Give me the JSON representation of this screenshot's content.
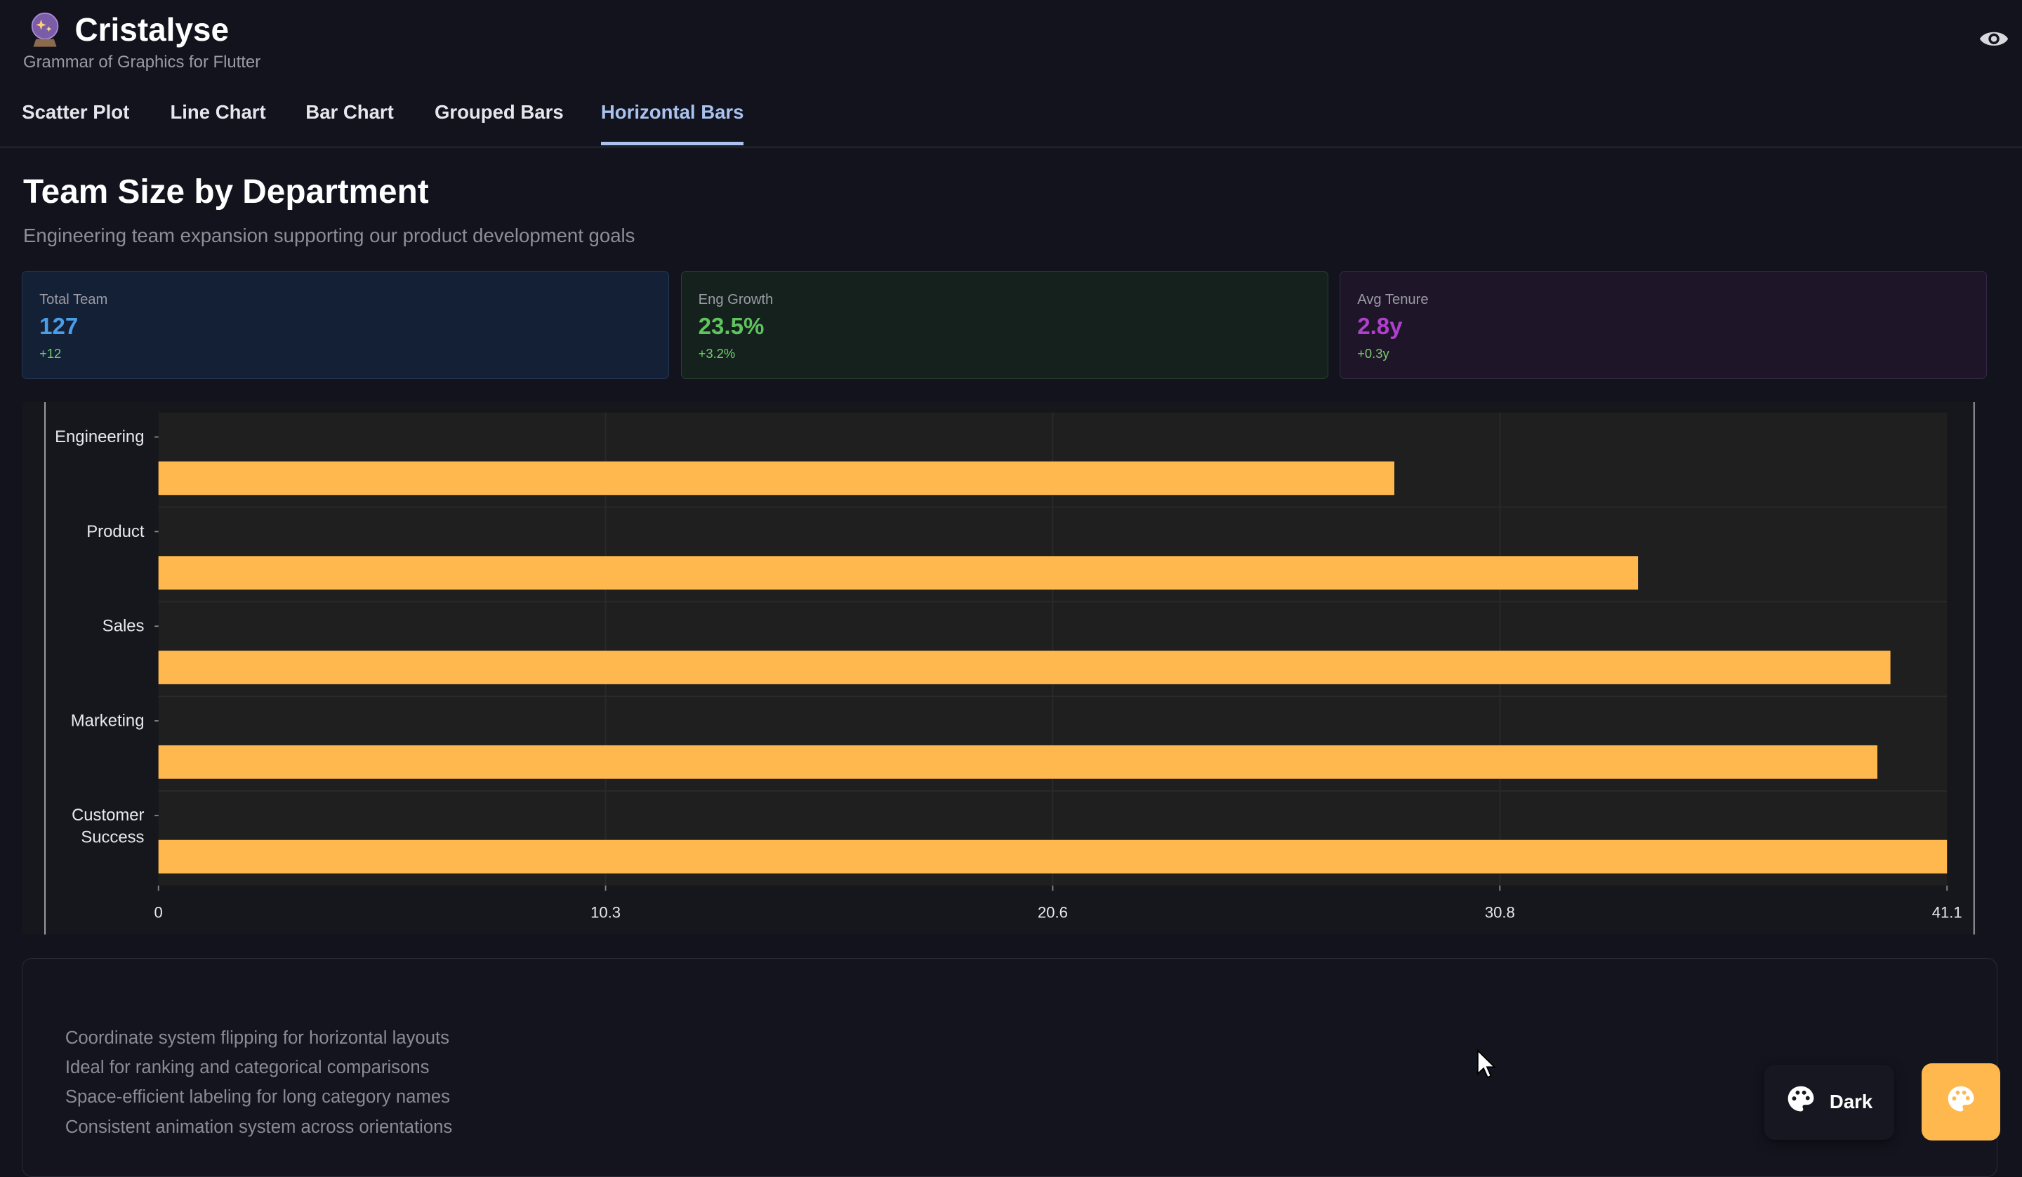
{
  "app": {
    "title": "Cristalyse",
    "subtitle": "Grammar of Graphics for Flutter",
    "logo_icon": "crystal-ball-icon"
  },
  "tabs": [
    {
      "label": "Scatter Plot",
      "active": false
    },
    {
      "label": "Line Chart",
      "active": false
    },
    {
      "label": "Bar Chart",
      "active": false
    },
    {
      "label": "Grouped Bars",
      "active": false
    },
    {
      "label": "Horizontal Bars",
      "active": true
    }
  ],
  "page": {
    "title": "Team Size by Department",
    "subtitle": "Engineering team expansion supporting our product development goals"
  },
  "metrics": [
    {
      "label": "Total Team",
      "value": "127",
      "change": "+12",
      "color": "#4a9ee8"
    },
    {
      "label": "Eng Growth",
      "value": "23.5%",
      "change": "+3.2%",
      "color": "#5fc45f"
    },
    {
      "label": "Avg Tenure",
      "value": "2.8y",
      "change": "+0.3y",
      "color": "#b03fcf"
    }
  ],
  "chart_data": {
    "type": "bar",
    "orientation": "horizontal",
    "categories": [
      "Engineering",
      "Product",
      "Sales",
      "Marketing",
      "Customer Success"
    ],
    "values": [
      28.4,
      34.0,
      39.8,
      39.5,
      41.1
    ],
    "xlim": [
      0,
      41.1
    ],
    "xticks": [
      "0",
      "10.3",
      "20.6",
      "30.8",
      "41.1"
    ],
    "bar_color": "#ffb84d",
    "grid": true
  },
  "features": [
    "Coordinate system flipping for horizontal layouts",
    "Ideal for ranking and categorical comparisons",
    "Space-efficient labeling for long category names",
    "Consistent animation system across orientations"
  ],
  "theme_button": {
    "label": "Dark"
  },
  "colors": {
    "background": "#12131d",
    "accent": "#ffb84d",
    "tab_active": "#a9c2ee"
  }
}
